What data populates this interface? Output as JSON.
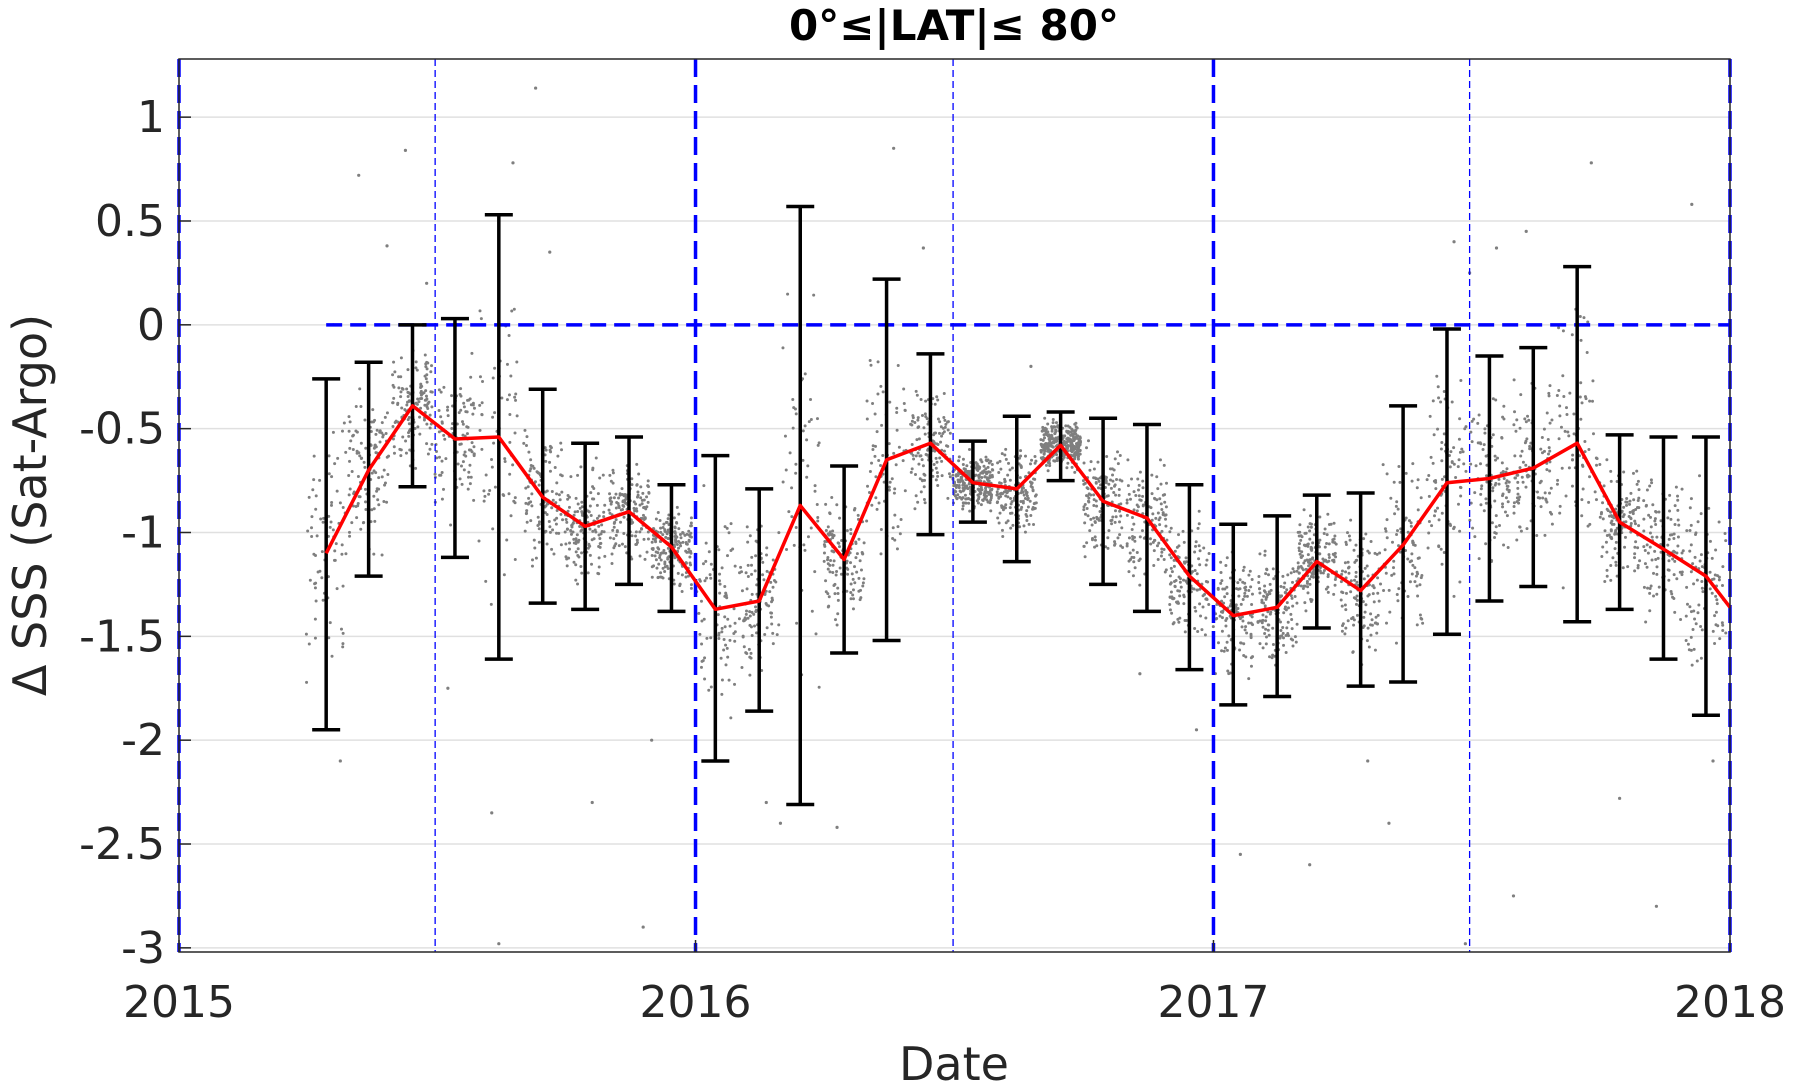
{
  "chart_data": {
    "type": "line",
    "title": "0°≤|LAT|≤ 80°",
    "xlabel": "Date",
    "ylabel": "Δ SSS (Sat-Argo)",
    "xlim": [
      "2015-01-01",
      "2018-01-01"
    ],
    "ylim": [
      -3.02,
      1.28
    ],
    "xticks": [
      {
        "date": "2015-01-01",
        "label": "2015"
      },
      {
        "date": "2016-01-01",
        "label": "2016"
      },
      {
        "date": "2017-01-01",
        "label": "2017"
      },
      {
        "date": "2018-01-01",
        "label": "2018"
      }
    ],
    "yticks": [
      {
        "value": 1,
        "label": "1"
      },
      {
        "value": 0.5,
        "label": "0.5"
      },
      {
        "value": 0,
        "label": "0"
      },
      {
        "value": -0.5,
        "label": "-0.5"
      },
      {
        "value": -1,
        "label": "-1"
      },
      {
        "value": -1.5,
        "label": "-1.5"
      },
      {
        "value": -2,
        "label": "-2"
      },
      {
        "value": -2.5,
        "label": "-2.5"
      },
      {
        "value": -3,
        "label": "-3"
      }
    ],
    "grid": "horizontal",
    "reference_lines": {
      "year_lines": [
        "2015-01-01",
        "2016-01-01",
        "2017-01-01",
        "2018-01-01"
      ],
      "half_year_lines": [
        "2015-07-01",
        "2016-07-01",
        "2017-07-01"
      ],
      "zero_line": {
        "y": 0,
        "from": "2015-04-15",
        "to": "2018-01-01"
      }
    },
    "colors": {
      "mean_line": "#ff0000",
      "error_bars": "#000000",
      "scatter": "#7f7f7f",
      "reference_lines": "#0000ff",
      "grid": "#e0e0e0"
    },
    "series": [
      {
        "type": "line_with_errorbars",
        "points": [
          {
            "x": "2015-04-15",
            "y": -1.1,
            "ylo": -1.95,
            "yhi": -0.26
          },
          {
            "x": "2015-05-15",
            "y": -0.7,
            "ylo": -1.21,
            "yhi": -0.18
          },
          {
            "x": "2015-06-15",
            "y": -0.39,
            "ylo": -0.78,
            "yhi": 0.0
          },
          {
            "x": "2015-07-15",
            "y": -0.55,
            "ylo": -1.12,
            "yhi": 0.03
          },
          {
            "x": "2015-08-15",
            "y": -0.54,
            "ylo": -1.61,
            "yhi": 0.53
          },
          {
            "x": "2015-09-15",
            "y": -0.83,
            "ylo": -1.34,
            "yhi": -0.31
          },
          {
            "x": "2015-10-15",
            "y": -0.97,
            "ylo": -1.37,
            "yhi": -0.57
          },
          {
            "x": "2015-11-15",
            "y": -0.9,
            "ylo": -1.25,
            "yhi": -0.54
          },
          {
            "x": "2015-12-15",
            "y": -1.07,
            "ylo": -1.38,
            "yhi": -0.77
          },
          {
            "x": "2016-01-15",
            "y": -1.37,
            "ylo": -2.1,
            "yhi": -0.63
          },
          {
            "x": "2016-02-15",
            "y": -1.33,
            "ylo": -1.86,
            "yhi": -0.79
          },
          {
            "x": "2016-03-15",
            "y": -0.87,
            "ylo": -2.31,
            "yhi": 0.57
          },
          {
            "x": "2016-04-15",
            "y": -1.13,
            "ylo": -1.58,
            "yhi": -0.68
          },
          {
            "x": "2016-05-15",
            "y": -0.65,
            "ylo": -1.52,
            "yhi": 0.22
          },
          {
            "x": "2016-06-15",
            "y": -0.57,
            "ylo": -1.01,
            "yhi": -0.14
          },
          {
            "x": "2016-07-15",
            "y": -0.76,
            "ylo": -0.95,
            "yhi": -0.56
          },
          {
            "x": "2016-08-15",
            "y": -0.79,
            "ylo": -1.14,
            "yhi": -0.44
          },
          {
            "x": "2016-09-15",
            "y": -0.58,
            "ylo": -0.75,
            "yhi": -0.42
          },
          {
            "x": "2016-10-15",
            "y": -0.85,
            "ylo": -1.25,
            "yhi": -0.45
          },
          {
            "x": "2016-11-15",
            "y": -0.93,
            "ylo": -1.38,
            "yhi": -0.48
          },
          {
            "x": "2016-12-15",
            "y": -1.21,
            "ylo": -1.66,
            "yhi": -0.77
          },
          {
            "x": "2017-01-15",
            "y": -1.4,
            "ylo": -1.83,
            "yhi": -0.96
          },
          {
            "x": "2017-02-15",
            "y": -1.36,
            "ylo": -1.79,
            "yhi": -0.92
          },
          {
            "x": "2017-03-15",
            "y": -1.14,
            "ylo": -1.46,
            "yhi": -0.82
          },
          {
            "x": "2017-04-15",
            "y": -1.28,
            "ylo": -1.74,
            "yhi": -0.81
          },
          {
            "x": "2017-05-15",
            "y": -1.06,
            "ylo": -1.72,
            "yhi": -0.39
          },
          {
            "x": "2017-06-15",
            "y": -0.76,
            "ylo": -1.49,
            "yhi": -0.02
          },
          {
            "x": "2017-07-15",
            "y": -0.74,
            "ylo": -1.33,
            "yhi": -0.15
          },
          {
            "x": "2017-08-15",
            "y": -0.69,
            "ylo": -1.26,
            "yhi": -0.11
          },
          {
            "x": "2017-09-15",
            "y": -0.57,
            "ylo": -1.43,
            "yhi": 0.28
          },
          {
            "x": "2017-10-15",
            "y": -0.95,
            "ylo": -1.37,
            "yhi": -0.53
          },
          {
            "x": "2017-11-15",
            "y": -1.08,
            "ylo": -1.61,
            "yhi": -0.54
          },
          {
            "x": "2017-12-15",
            "y": -1.21,
            "ylo": -1.88,
            "yhi": -0.54
          },
          {
            "x": "2018-01-01",
            "y": -1.36
          }
        ]
      },
      {
        "type": "scatter",
        "description_points": "individual matchup differences",
        "points": [
          [
            "2015-04-20",
            0.0
          ],
          [
            "2015-05-08",
            0.72
          ],
          [
            "2015-06-10",
            0.84
          ],
          [
            "2015-07-10",
            -1.75
          ],
          [
            "2015-08-10",
            -2.35
          ],
          [
            "2015-08-25",
            0.78
          ],
          [
            "2015-09-10",
            1.14
          ],
          [
            "2015-09-20",
            0.35
          ],
          [
            "2015-05-28",
            0.38
          ],
          [
            "2015-06-25",
            0.2
          ],
          [
            "2015-08-15",
            -2.98
          ],
          [
            "2015-10-20",
            -2.3
          ],
          [
            "2015-11-25",
            -2.9
          ],
          [
            "2016-02-20",
            -2.3
          ],
          [
            "2016-04-10",
            -2.42
          ],
          [
            "2016-05-20",
            0.85
          ],
          [
            "2016-06-10",
            0.37
          ],
          [
            "2016-08-25",
            -0.2
          ],
          [
            "2016-12-20",
            -1.95
          ],
          [
            "2017-01-20",
            -2.55
          ],
          [
            "2017-03-10",
            -2.6
          ],
          [
            "2017-05-05",
            -2.4
          ],
          [
            "2017-06-20",
            0.4
          ],
          [
            "2017-06-28",
            -2.98
          ],
          [
            "2017-07-20",
            0.37
          ],
          [
            "2017-08-10",
            0.45
          ],
          [
            "2017-09-25",
            0.78
          ],
          [
            "2017-12-05",
            0.58
          ],
          [
            "2017-11-10",
            -2.8
          ],
          [
            "2017-12-20",
            -2.1
          ],
          [
            "2016-03-01",
            -2.4
          ],
          [
            "2015-04-25",
            -2.1
          ],
          [
            "2015-12-01",
            -2.0
          ],
          [
            "2017-10-15",
            -2.28
          ],
          [
            "2017-08-01",
            -2.75
          ],
          [
            "2016-11-10",
            -1.68
          ],
          [
            "2017-04-20",
            -2.1
          ],
          [
            "2017-07-01",
            0.25
          ]
        ]
      }
    ]
  }
}
